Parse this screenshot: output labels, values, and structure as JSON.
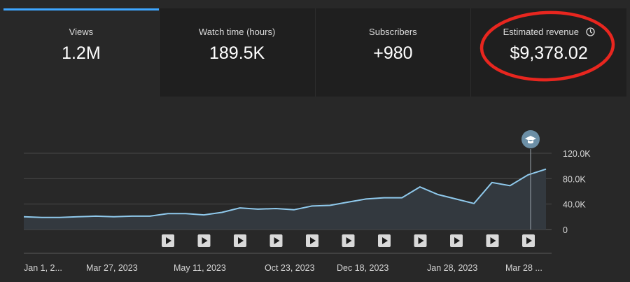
{
  "metrics": [
    {
      "label": "Views",
      "value": "1.2M"
    },
    {
      "label": "Watch time (hours)",
      "value": "189.5K"
    },
    {
      "label": "Subscribers",
      "value": "+980"
    },
    {
      "label": "Estimated revenue",
      "value": "$9,378.02"
    }
  ],
  "active_tab_index": 0,
  "annotation": {
    "color": "#e8261f",
    "target": "Estimated revenue"
  },
  "colors": {
    "accent": "#3ea6ff",
    "line": "#8fc9ec",
    "area": "#33393f"
  },
  "icons": {
    "revenue_info": "clock-icon",
    "milestone": "graduation-cap-icon",
    "video": "play-icon"
  },
  "chart_data": {
    "type": "area",
    "y_ticks": [
      "120.0K",
      "80.0K",
      "40.0K",
      "0"
    ],
    "ylim": [
      0,
      120000
    ],
    "x_tick_labels": [
      "Jan 1, 2...",
      "Mar 27, 2023",
      "May 11, 2023",
      "Oct 23, 2023",
      "Dec 18, 2023",
      "Jan 28, 2023",
      "Mar 28 ..."
    ],
    "values": [
      20000,
      19000,
      19000,
      20000,
      21000,
      20000,
      21000,
      21000,
      25000,
      25000,
      23000,
      27000,
      34000,
      32000,
      33000,
      31000,
      37000,
      38000,
      43000,
      48000,
      50000,
      50000,
      67000,
      55000,
      48000,
      41000,
      74000,
      69000,
      86000,
      95000
    ],
    "milestone_index": 28,
    "video_marker_count": 11,
    "grid": true
  }
}
